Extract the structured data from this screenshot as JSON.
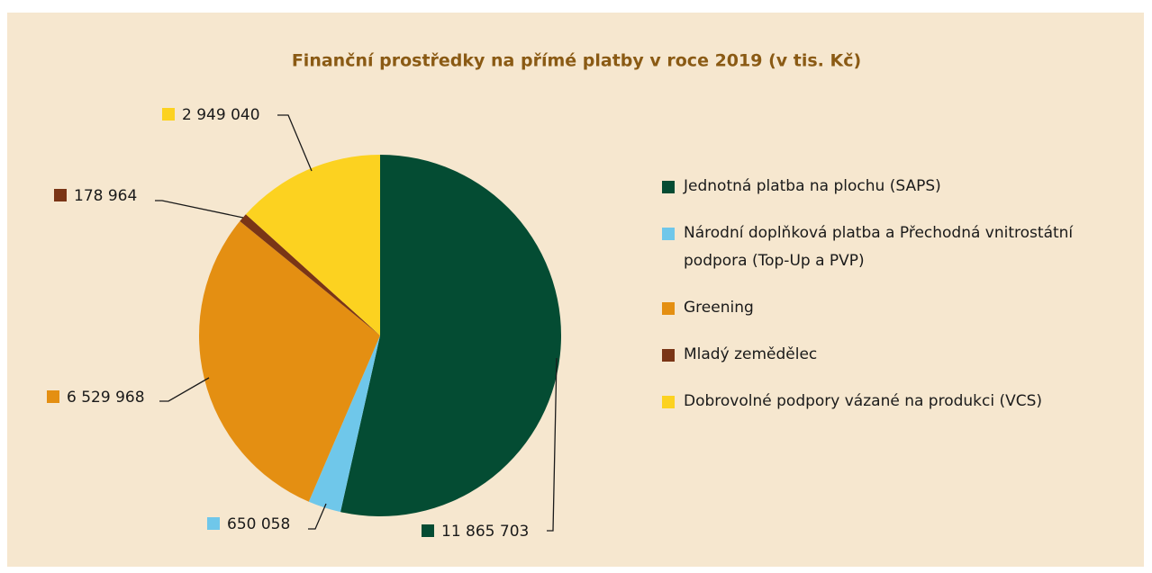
{
  "chart_data": {
    "type": "pie",
    "title": "Finanční prostředky na přímé platby v roce 2019 (v tis. Kč)",
    "categories": [
      "Jednotná platba na plochu (SAPS)",
      "Národní doplňková platba a Přechodná vnitrostátní podpora (Top-Up a PVP)",
      "Greening",
      "Mladý zemědělec",
      "Dobrovolné podpory vázané na produkci (VCS)"
    ],
    "values": [
      11865703,
      650058,
      6529968,
      178964,
      2949040
    ],
    "value_labels": [
      "11 865 703",
      "650 058",
      "6 529 968",
      "178 964",
      "2 949 040"
    ],
    "colors": [
      "#044c33",
      "#6fc7ea",
      "#e48f12",
      "#7a3516",
      "#fcd220"
    ],
    "legend": "right"
  }
}
